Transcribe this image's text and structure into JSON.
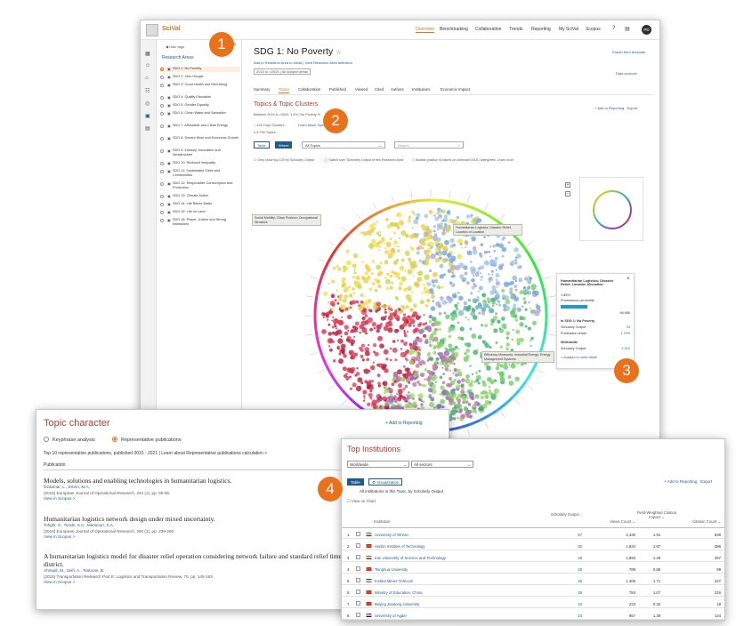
{
  "main": {
    "brand": "SciVal",
    "topnav": [
      "Overview",
      "Benchmarking",
      "Collaboration",
      "Trends",
      "Reporting",
      "My SciVal",
      "Scopus"
    ],
    "active_nav": "Overview",
    "avatar": "PD",
    "left_panel": {
      "hide_label": "Hide tags",
      "title": "Research Areas",
      "items": [
        "SDG 1: No Poverty",
        "SDG 2: Zero Hunger",
        "SDG 3: Good Health and Well-being",
        "SDG 4: Quality Education",
        "SDG 5: Gender Equality",
        "SDG 6: Clean Water and Sanitation",
        "SDG 7: Affordable and Clean Energy",
        "SDG 8: Decent Work and Economic Growth",
        "SDG 9: Industry, Innovation and Infrastructure",
        "SDG 10: Reduced Inequality",
        "SDG 11: Sustainable Cities and Communities",
        "SDG 12: Responsible Consumption and Production",
        "SDG 13: Climate Action",
        "SDG 14: Life Below Water",
        "SDG 15: Life on Land",
        "SDG 16: Peace, Justice and Strong Institutions"
      ]
    },
    "sdg_title": "SDG 1: No Poverty",
    "sdg_links": "Add to Research Area to email  |  View Research Area definition",
    "filter_row": "2015 to >2020  |  All subject areas",
    "export_template": "Export from template",
    "data_sources": "Data sources",
    "tabs": [
      "Summary",
      "Topics",
      "Collaboration",
      "Published",
      "Viewed",
      "Cited",
      "Authors",
      "Institutions",
      "Economic Impact"
    ],
    "active_tab": "Topics",
    "topics_title": "Topics & Topic Clusters",
    "topics_sub": "Between 2015 to >2020, 3.4% | No Poverty %",
    "radio_clusters": "445 Topic Clusters",
    "radio_topics": "6,750 Topics",
    "learn_about": "Learn about Topics",
    "add_reporting": "+ Add to Reporting",
    "export": "Export",
    "btn_table": "Table",
    "btn_wheel": "Wheel",
    "btn_all": "All Topics",
    "search_placeholder": "Search",
    "chk_text": "Only show top 100 by Scholarly Output",
    "chk_text2": "Switch size: Scholarly Output of this Research Area",
    "chk_text3": "Bubble position is based on dominant ASJC categories. Learn more",
    "callouts": [
      "Social Mobility; Class Position; Occupational Structure",
      "Humanitarian Logistics; Disaster Relief; Location of Location",
      "Efficiency Measures; Industrial Energy; Energy Management Systems"
    ],
    "detail": {
      "title": "Humanitarian Logistics; Disaster Relief; Location Allocation",
      "pct": "1.85%",
      "prominence": "Prominence percentile",
      "prominence_val": "98.980",
      "in_sdg": "In SDG 1: No Poverty",
      "scholarly": "Scholarly Output",
      "scholarly_val": "24",
      "pub_share": "Publication share",
      "pub_share_val": "1.79%",
      "worldwide": "Worldwide",
      "ww_scholarly": "Scholarly Output",
      "ww_scholarly_val": "2,314",
      "analyze": "> Analyze in more detail"
    }
  },
  "markers": [
    "1",
    "2",
    "3",
    "4"
  ],
  "topic_character": {
    "title": "Topic character",
    "add": "+ Add to Reporting",
    "radio1": "Keyphrase analysis",
    "radio2": "Representative publications",
    "sub": "Top 10 representative publications, published 2015 - 2021  |  Learn about Representative publications calculation >",
    "col": "Publication",
    "pubs": [
      {
        "title": "Models, solutions and enabling technologies in humanitarian logistics.",
        "authors": "Özdamar, L., Ertem, M.A.",
        "journal": "(2015) European Journal of Operational Research, 244 (1), pp. 55-65.",
        "link": "View in Scopus >"
      },
      {
        "title": "Humanitarian logistics network design under mixed uncertainty.",
        "authors": "Tofighi, S., Torabi, S.A., Mansouri, S.A.",
        "journal": "(2016) European Journal of Operational Research, 250 (1), pp. 239-250.",
        "link": "View in Scopus >"
      },
      {
        "title": "A humanitarian logistics model for disaster relief operation considering network failure and standard relief time: A case study on San Francisco district.",
        "authors": "Ahmadi, M., Seifi, A., Tootooni, B.",
        "journal": "(2015) Transportation Research Part E: Logistics and Transportation Review, 75, pp. 145-163.",
        "link": "View in Scopus >"
      }
    ]
  },
  "institutions": {
    "title": "Top Institutions",
    "sel1": "Worldwide",
    "sel2": "All sectors",
    "tab_table": "Table",
    "tab_vis": "Visualization",
    "add": "+ Add to Reporting",
    "export": "Export",
    "sub": "All institutions in this Topic, by Scholarly Output",
    "view": "View on Chart",
    "headers": [
      "Institution",
      "Scholarly Output",
      "Views Count",
      "Field-Weighted Citation Impact",
      "Citation Count"
    ],
    "rows": [
      {
        "n": "1.",
        "name": "University of Tehran",
        "so": "57",
        "vc": "3,430",
        "fwci": "1.91",
        "cc": "839",
        "flag": [
          "#239f40",
          "#ffffff",
          "#da0000"
        ]
      },
      {
        "n": "2.",
        "name": "Harbin Institute of Technology",
        "so": "30",
        "vc": "1,834",
        "fwci": "1.87",
        "cc": "386",
        "flag": [
          "#de2910",
          "#de2910",
          "#de2910"
        ]
      },
      {
        "n": "3.",
        "name": "Iran University of Science and Technology",
        "so": "28",
        "vc": "1,893",
        "fwci": "1.48",
        "cc": "257",
        "flag": [
          "#239f40",
          "#ffffff",
          "#da0000"
        ]
      },
      {
        "n": "4.",
        "name": "Tsinghua University",
        "so": "28",
        "vc": "789",
        "fwci": "0.86",
        "cc": "99",
        "flag": [
          "#de2910",
          "#de2910",
          "#de2910"
        ]
      },
      {
        "n": "5.",
        "name": "Institut Mines-Télécom",
        "so": "26",
        "vc": "1,406",
        "fwci": "1.71",
        "cc": "227",
        "flag": [
          "#0055a4",
          "#ffffff",
          "#ef4135"
        ]
      },
      {
        "n": "6.",
        "name": "Ministry of Education, China",
        "so": "26",
        "vc": "784",
        "fwci": "1.07",
        "cc": "216",
        "flag": [
          "#de2910",
          "#de2910",
          "#de2910"
        ]
      },
      {
        "n": "7.",
        "name": "Beijing Jiaotong University",
        "so": "23",
        "vc": "223",
        "fwci": "0.32",
        "cc": "18",
        "flag": [
          "#de2910",
          "#de2910",
          "#de2910"
        ]
      },
      {
        "n": "8.",
        "name": "University of Agder",
        "so": "23",
        "vc": "957",
        "fwci": "1.39",
        "cc": "134",
        "flag": [
          "#ba0c2f",
          "#ffffff",
          "#00205b"
        ]
      }
    ]
  },
  "colors": {
    "accent": "#e9711c",
    "title_red": "#c0392b",
    "link": "#1d5b8a"
  }
}
